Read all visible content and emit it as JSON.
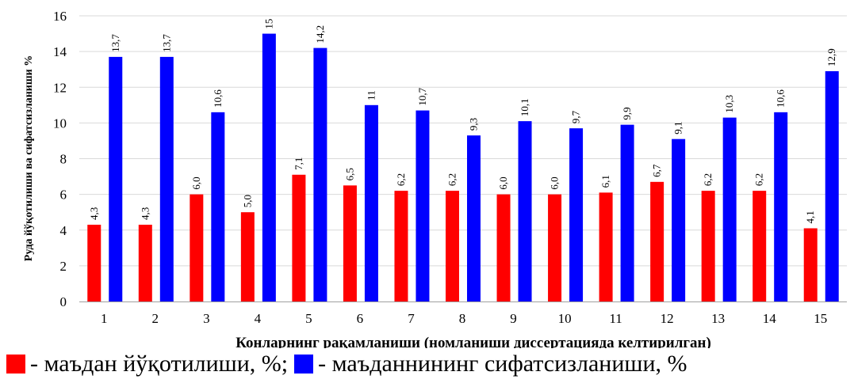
{
  "chart_data": {
    "type": "bar",
    "categories": [
      "1",
      "2",
      "3",
      "4",
      "5",
      "6",
      "7",
      "8",
      "9",
      "10",
      "11",
      "12",
      "13",
      "14",
      "15"
    ],
    "series": [
      {
        "name": "маъдан йўқотилиши, %",
        "color": "#ff0000",
        "values": [
          4.3,
          4.3,
          6.0,
          5.0,
          7.1,
          6.5,
          6.2,
          6.2,
          6.0,
          6.0,
          6.1,
          6.7,
          6.2,
          6.2,
          4.1
        ],
        "labels": [
          "4,3",
          "4,3",
          "6,0",
          "5,0",
          "7,1",
          "6,5",
          "6,2",
          "6,2",
          "6,0",
          "6,0",
          "6,1",
          "6,7",
          "6,2",
          "6,2",
          "4,1"
        ]
      },
      {
        "name": "маъданнининг сифатсизланиши, %",
        "color": "#0000ff",
        "values": [
          13.7,
          13.7,
          10.6,
          15,
          14.2,
          11,
          10.7,
          9.3,
          10.1,
          9.7,
          9.9,
          9.1,
          10.3,
          10.6,
          12.9
        ],
        "labels": [
          "13,7",
          "13,7",
          "10,6",
          "15",
          "14,2",
          "11",
          "10,7",
          "9,3",
          "10,1",
          "9,7",
          "9,9",
          "9,1",
          "10,3",
          "10,6",
          "12,9"
        ]
      }
    ],
    "xlabel": "Конларнинг рақамланиши (номланиши диссертацияда келтирилган)",
    "ylabel": "Руда йўқотилиши ва сифатсизланиши %",
    "ylim": [
      0,
      16
    ],
    "yticks": [
      "0",
      "2",
      "4",
      "6",
      "8",
      "10",
      "12",
      "14",
      "16"
    ],
    "grid": true,
    "legend_position": "bottom"
  },
  "legend": {
    "items": [
      {
        "text": "- маъдан йўқотилиши, %;",
        "color": "#ff0000"
      },
      {
        "text": " - маъданнининг сифатсизланиши, %",
        "color": "#0000ff"
      }
    ]
  }
}
